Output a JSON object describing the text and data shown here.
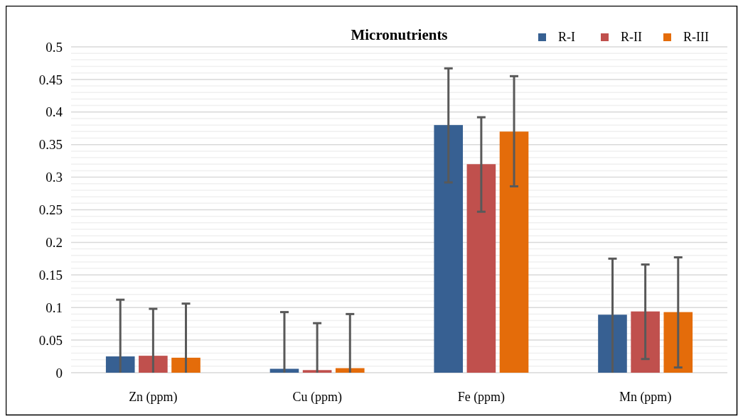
{
  "chart_data": {
    "type": "bar",
    "title": "Micronutrients",
    "categories": [
      "Zn (ppm)",
      "Cu (ppm)",
      "Fe (ppm)",
      "Mn (ppm)"
    ],
    "series": [
      {
        "name": "R-I",
        "color": "#376092",
        "values": [
          0.025,
          0.006,
          0.38,
          0.089
        ],
        "errors": [
          [
            0,
            0.112
          ],
          [
            0,
            0.093
          ],
          [
            0.292,
            0.467
          ],
          [
            0,
            0.175
          ]
        ]
      },
      {
        "name": "R-II",
        "color": "#c0504d",
        "values": [
          0.026,
          0.004,
          0.32,
          0.094
        ],
        "errors": [
          [
            0,
            0.098
          ],
          [
            0,
            0.076
          ],
          [
            0.247,
            0.392
          ],
          [
            0.021,
            0.166
          ]
        ]
      },
      {
        "name": "R-III",
        "color": "#e46c0a",
        "values": [
          0.023,
          0.007,
          0.37,
          0.093
        ],
        "errors": [
          [
            0,
            0.106
          ],
          [
            0,
            0.09
          ],
          [
            0.286,
            0.455
          ],
          [
            0.008,
            0.177
          ]
        ]
      }
    ],
    "ylim": [
      0,
      0.5
    ],
    "yticks": [
      0,
      0.05,
      0.1,
      0.15,
      0.2,
      0.25,
      0.3,
      0.35,
      0.4,
      0.45,
      0.5
    ],
    "grid": "y",
    "legend": "top right"
  }
}
